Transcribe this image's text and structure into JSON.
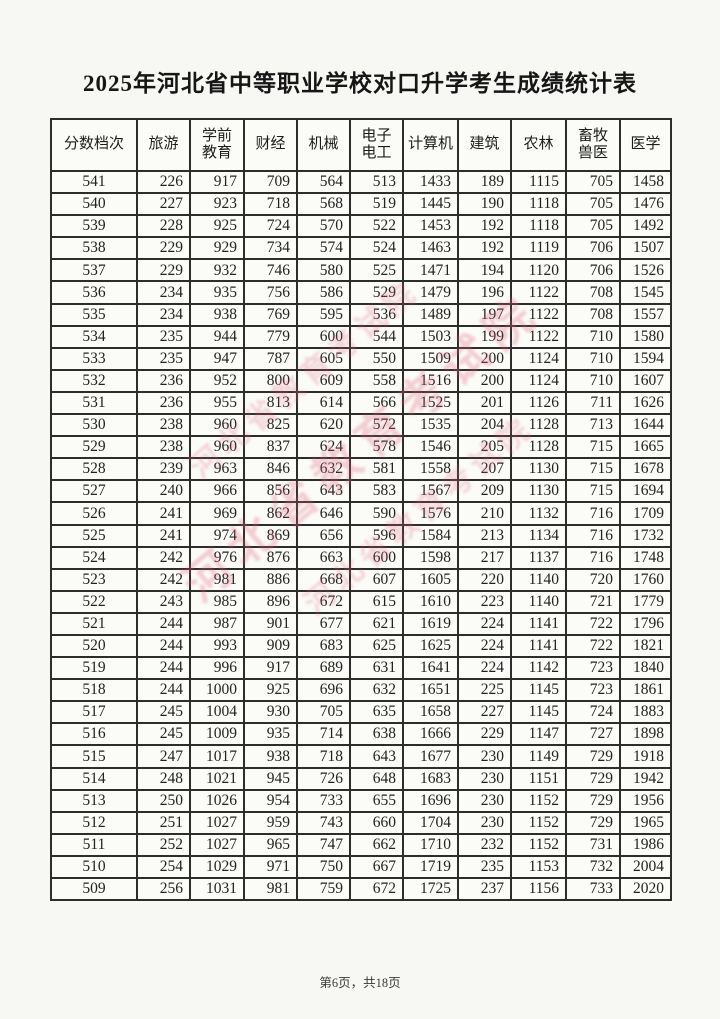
{
  "page": {
    "title": "2025年河北省中等职业学校对口升学考生成绩统计表",
    "footer": "第6页，共18页"
  },
  "watermark": {
    "line1": "河北省教育考试院",
    "line2": "河北省教育考试院",
    "line3": "河北省教育考试院",
    "color": "#dd6278"
  },
  "table": {
    "headers": [
      "分数档次",
      "旅游",
      "学前\n教育",
      "财经",
      "机械",
      "电子\n电工",
      "计算机",
      "建筑",
      "农林",
      "畜牧\n兽医",
      "医学"
    ],
    "rows": [
      [
        541,
        226,
        917,
        709,
        564,
        513,
        1433,
        189,
        1115,
        705,
        1458
      ],
      [
        540,
        227,
        923,
        718,
        568,
        519,
        1445,
        190,
        1118,
        705,
        1476
      ],
      [
        539,
        228,
        925,
        724,
        570,
        522,
        1453,
        192,
        1118,
        705,
        1492
      ],
      [
        538,
        229,
        929,
        734,
        574,
        524,
        1463,
        192,
        1119,
        706,
        1507
      ],
      [
        537,
        229,
        932,
        746,
        580,
        525,
        1471,
        194,
        1120,
        706,
        1526
      ],
      [
        536,
        234,
        935,
        756,
        586,
        529,
        1479,
        196,
        1122,
        708,
        1545
      ],
      [
        535,
        234,
        938,
        769,
        595,
        536,
        1489,
        197,
        1122,
        708,
        1557
      ],
      [
        534,
        235,
        944,
        779,
        600,
        544,
        1503,
        199,
        1122,
        710,
        1580
      ],
      [
        533,
        235,
        947,
        787,
        605,
        550,
        1509,
        200,
        1124,
        710,
        1594
      ],
      [
        532,
        236,
        952,
        800,
        609,
        558,
        1516,
        200,
        1124,
        710,
        1607
      ],
      [
        531,
        236,
        955,
        813,
        614,
        566,
        1525,
        201,
        1126,
        711,
        1626
      ],
      [
        530,
        238,
        960,
        825,
        620,
        572,
        1535,
        204,
        1128,
        713,
        1644
      ],
      [
        529,
        238,
        960,
        837,
        624,
        578,
        1546,
        205,
        1128,
        715,
        1665
      ],
      [
        528,
        239,
        963,
        846,
        632,
        581,
        1558,
        207,
        1130,
        715,
        1678
      ],
      [
        527,
        240,
        966,
        856,
        643,
        583,
        1567,
        209,
        1130,
        715,
        1694
      ],
      [
        526,
        241,
        969,
        862,
        646,
        590,
        1576,
        210,
        1132,
        716,
        1709
      ],
      [
        525,
        241,
        974,
        869,
        656,
        596,
        1584,
        213,
        1134,
        716,
        1732
      ],
      [
        524,
        242,
        976,
        876,
        663,
        600,
        1598,
        217,
        1137,
        716,
        1748
      ],
      [
        523,
        242,
        981,
        886,
        668,
        607,
        1605,
        220,
        1140,
        720,
        1760
      ],
      [
        522,
        243,
        985,
        896,
        672,
        615,
        1610,
        223,
        1140,
        721,
        1779
      ],
      [
        521,
        244,
        987,
        901,
        677,
        621,
        1619,
        224,
        1141,
        722,
        1796
      ],
      [
        520,
        244,
        993,
        909,
        683,
        625,
        1625,
        224,
        1141,
        722,
        1821
      ],
      [
        519,
        244,
        996,
        917,
        689,
        631,
        1641,
        224,
        1142,
        723,
        1840
      ],
      [
        518,
        244,
        1000,
        925,
        696,
        632,
        1651,
        225,
        1145,
        723,
        1861
      ],
      [
        517,
        245,
        1004,
        930,
        705,
        635,
        1658,
        227,
        1145,
        724,
        1883
      ],
      [
        516,
        245,
        1009,
        935,
        714,
        638,
        1666,
        229,
        1147,
        727,
        1898
      ],
      [
        515,
        247,
        1017,
        938,
        718,
        643,
        1677,
        230,
        1149,
        729,
        1918
      ],
      [
        514,
        248,
        1021,
        945,
        726,
        648,
        1683,
        230,
        1151,
        729,
        1942
      ],
      [
        513,
        250,
        1026,
        954,
        733,
        655,
        1696,
        230,
        1152,
        729,
        1956
      ],
      [
        512,
        251,
        1027,
        959,
        743,
        660,
        1704,
        230,
        1152,
        729,
        1965
      ],
      [
        511,
        252,
        1027,
        965,
        747,
        662,
        1710,
        232,
        1152,
        731,
        1986
      ],
      [
        510,
        254,
        1029,
        971,
        750,
        667,
        1719,
        235,
        1153,
        732,
        2004
      ],
      [
        509,
        256,
        1031,
        981,
        759,
        672,
        1725,
        237,
        1156,
        733,
        2020
      ]
    ]
  }
}
